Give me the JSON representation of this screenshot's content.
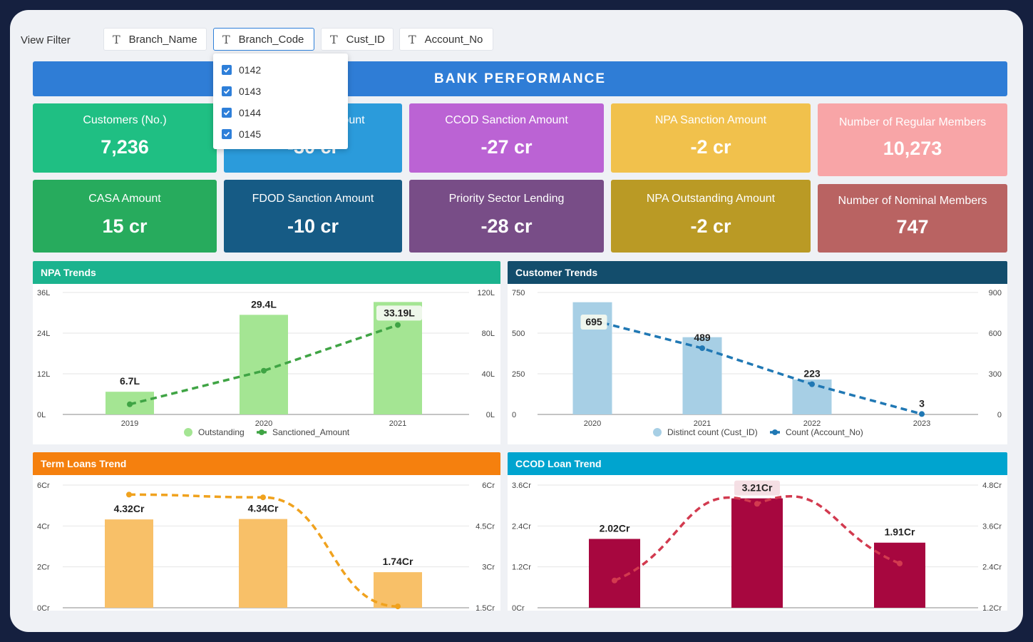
{
  "filters": {
    "label": "View Filter",
    "chips": [
      {
        "label": "Branch_Name",
        "icon": "T"
      },
      {
        "label": "Branch_Code",
        "icon": "T"
      },
      {
        "label": "Cust_ID",
        "icon": "T"
      },
      {
        "label": "Account_No",
        "icon": "T"
      }
    ],
    "dropdown": [
      {
        "label": "0142",
        "checked": true
      },
      {
        "label": "0143",
        "checked": true
      },
      {
        "label": "0144",
        "checked": true
      },
      {
        "label": "0145",
        "checked": true
      }
    ]
  },
  "banner": {
    "title": "BANK PERFORMANCE"
  },
  "kpis": [
    {
      "label": "Customers (No.)",
      "value": "7,236",
      "color": "#1fbf83"
    },
    {
      "label": "Amount",
      "value": "-30 cr",
      "color": "#2b9bdb"
    },
    {
      "label": "CCOD Sanction Amount",
      "value": "-27 cr",
      "color": "#bb63d4"
    },
    {
      "label": "NPA Sanction Amount",
      "value": "-2 cr",
      "color": "#f1c14c"
    },
    {
      "label": "Number of Regular Members",
      "value": "10,273",
      "color": "#f8a5a7"
    },
    {
      "label": "CASA Amount",
      "value": "15 cr",
      "color": "#27ab5d"
    },
    {
      "label": "FDOD Sanction Amount",
      "value": "-10 cr",
      "color": "#165b85"
    },
    {
      "label": "Priority Sector Lending",
      "value": "-28 cr",
      "color": "#784d87"
    },
    {
      "label": "NPA Outstanding Amount",
      "value": "-2 cr",
      "color": "#ba9a25"
    },
    {
      "label": "Number of Nominal Members",
      "value": "747",
      "color": "#b96362"
    }
  ],
  "chart_data": [
    {
      "type": "bar",
      "title": "NPA Trends",
      "header_color": "#1bb38e",
      "categories": [
        "2019",
        "2020",
        "2021"
      ],
      "series": [
        {
          "name": "Outstanding",
          "values": [
            6.7,
            29.4,
            33.19
          ],
          "labels": [
            "6.7L",
            "29.4L",
            "33.19L"
          ],
          "color": "#a4e593",
          "axis": "left"
        },
        {
          "name": "Sanctioned_Amount",
          "values": [
            10,
            43,
            88
          ],
          "color": "#3fa444",
          "axis": "right",
          "style": "dashed-line"
        }
      ],
      "left_ticks": [
        "0L",
        "12L",
        "24L",
        "36L"
      ],
      "right_ticks": [
        "0L",
        "40L",
        "80L",
        "120L"
      ],
      "ylim_left": [
        0,
        36
      ],
      "ylim_right": [
        0,
        120
      ]
    },
    {
      "type": "bar",
      "title": "Customer Trends",
      "header_color": "#134d6c",
      "categories": [
        "2020",
        "2021",
        "2022",
        "2023"
      ],
      "series": [
        {
          "name": "Distinct count (Cust_ID)",
          "values": [
            690,
            475,
            215,
            0
          ],
          "color": "#a7cfe5",
          "axis": "left"
        },
        {
          "name": "Count (Account_No)",
          "values": [
            695,
            489,
            223,
            3
          ],
          "labels": [
            "695",
            "489",
            "223",
            "3"
          ],
          "color": "#2078b4",
          "axis": "right",
          "style": "dashed-line"
        }
      ],
      "left_ticks": [
        "0",
        "250",
        "500",
        "750"
      ],
      "right_ticks": [
        "0",
        "300",
        "600",
        "900"
      ],
      "ylim_left": [
        0,
        750
      ],
      "ylim_right": [
        0,
        900
      ]
    },
    {
      "type": "bar",
      "title": "Term Loans Trend",
      "header_color": "#f5800e",
      "categories": [
        "",
        "",
        ""
      ],
      "series": [
        {
          "name": "",
          "values": [
            4.32,
            4.34,
            1.74
          ],
          "labels": [
            "4.32Cr",
            "4.34Cr",
            "1.74Cr"
          ],
          "color": "#f8c068",
          "axis": "left"
        },
        {
          "name": "",
          "values": [
            5.65,
            5.55,
            1.55
          ],
          "color": "#f0a21e",
          "axis": "right",
          "style": "dashed-curve"
        }
      ],
      "left_ticks": [
        "0Cr",
        "2Cr",
        "4Cr",
        "6Cr"
      ],
      "right_ticks": [
        "1.5Cr",
        "3Cr",
        "4.5Cr",
        "6Cr"
      ],
      "ylim_left": [
        0,
        6
      ],
      "ylim_right": [
        1.5,
        6
      ]
    },
    {
      "type": "bar",
      "title": "CCOD Loan Trend",
      "header_color": "#00a4cf",
      "categories": [
        "",
        "",
        ""
      ],
      "series": [
        {
          "name": "",
          "values": [
            2.02,
            3.21,
            1.91
          ],
          "labels": [
            "2.02Cr",
            "3.21Cr",
            "1.91Cr"
          ],
          "color": "#a7073f",
          "axis": "left"
        },
        {
          "name": "",
          "values": [
            2.0,
            4.25,
            2.5
          ],
          "color": "#d23a4f",
          "axis": "right",
          "style": "dashed-curve"
        }
      ],
      "left_ticks": [
        "0Cr",
        "1.2Cr",
        "2.4Cr",
        "3.6Cr"
      ],
      "right_ticks": [
        "1.2Cr",
        "2.4Cr",
        "3.6Cr",
        "4.8Cr"
      ],
      "ylim_left": [
        0,
        3.6
      ],
      "ylim_right": [
        1.2,
        4.8
      ]
    }
  ]
}
